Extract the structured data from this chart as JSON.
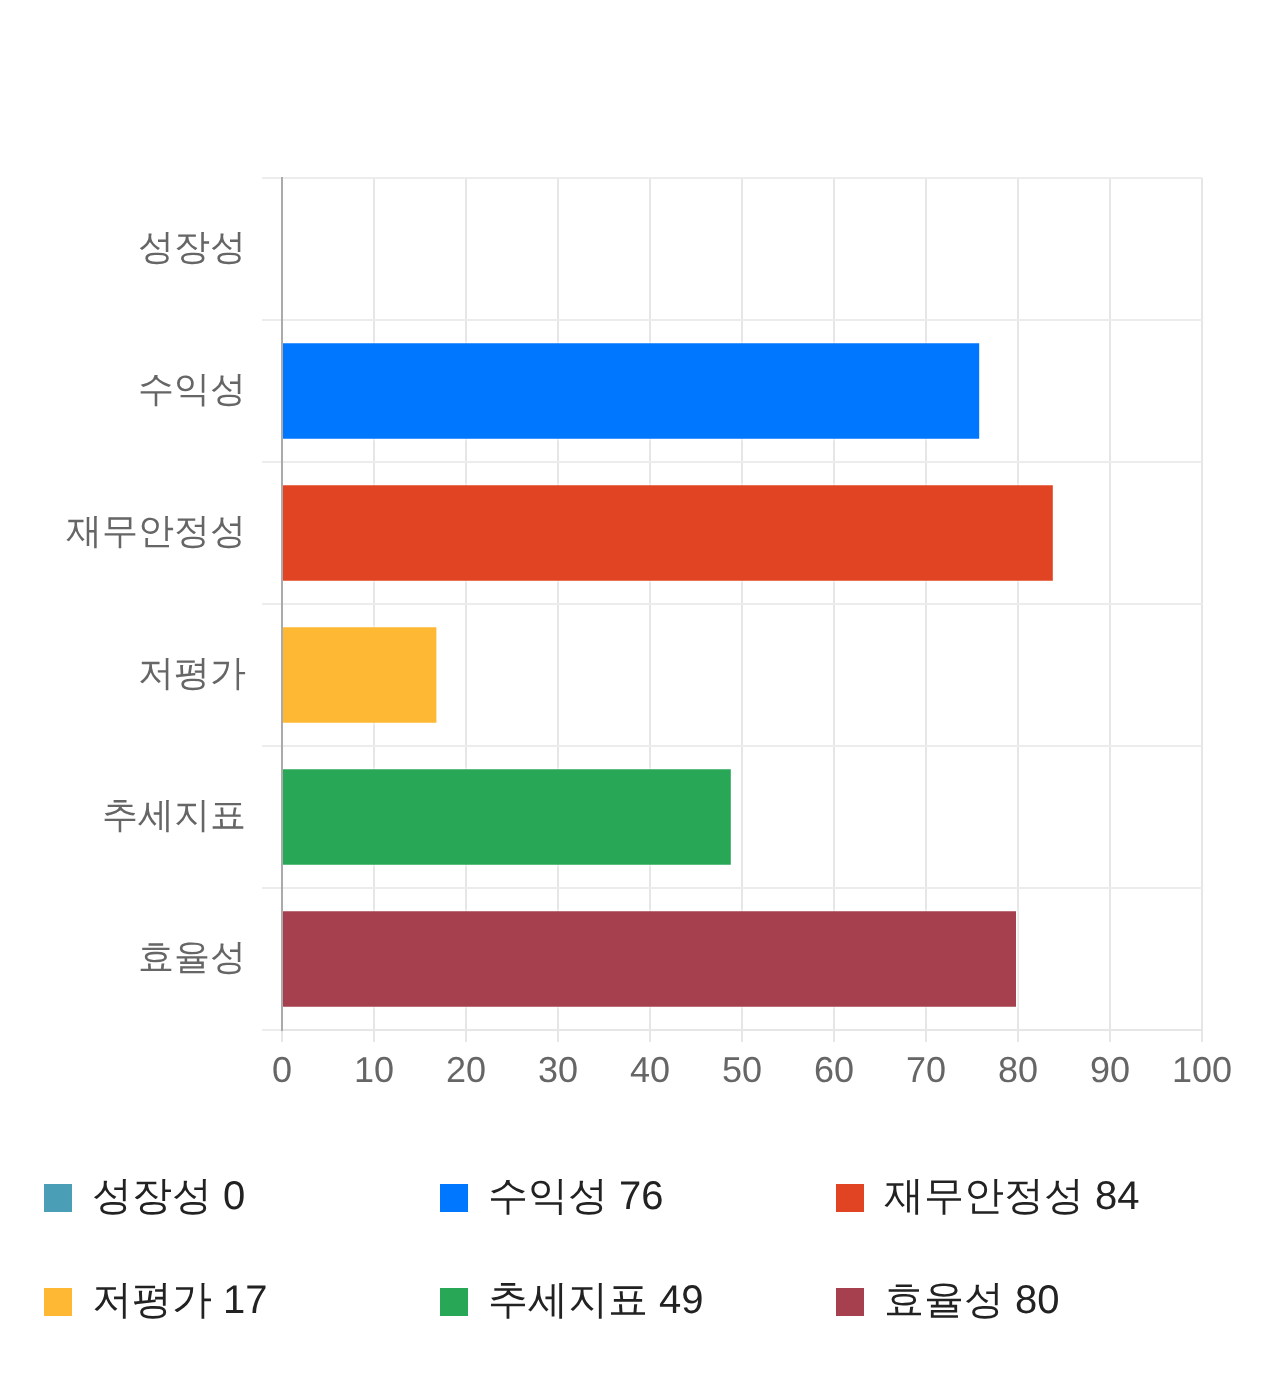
{
  "chart_data": {
    "type": "bar",
    "orientation": "horizontal",
    "stacked": true,
    "categories": [
      "성장성",
      "수익성",
      "재무안정성",
      "저평가",
      "추세지표",
      "효율성"
    ],
    "series": [
      {
        "name": "성장성 0",
        "color": "#4a9fb6",
        "values": [
          0,
          null,
          null,
          null,
          null,
          null
        ]
      },
      {
        "name": "수익성 76",
        "color": "#0077ff",
        "values": [
          null,
          76,
          null,
          null,
          null,
          null
        ]
      },
      {
        "name": "재무안정성 84",
        "color": "#e04422",
        "values": [
          null,
          null,
          84,
          null,
          null,
          null
        ]
      },
      {
        "name": "저평가 17",
        "color": "#ffb833",
        "values": [
          null,
          null,
          null,
          17,
          null,
          null
        ]
      },
      {
        "name": "추세지표 49",
        "color": "#28a756",
        "values": [
          null,
          null,
          null,
          null,
          49,
          null
        ]
      },
      {
        "name": "효율성 80",
        "color": "#a6404e",
        "values": [
          null,
          null,
          null,
          null,
          null,
          80
        ]
      }
    ],
    "xlim": [
      0,
      100
    ],
    "xticks": [
      0,
      10,
      20,
      30,
      40,
      50,
      60,
      70,
      80,
      90,
      100
    ],
    "grid": true,
    "legend": "bottom"
  }
}
